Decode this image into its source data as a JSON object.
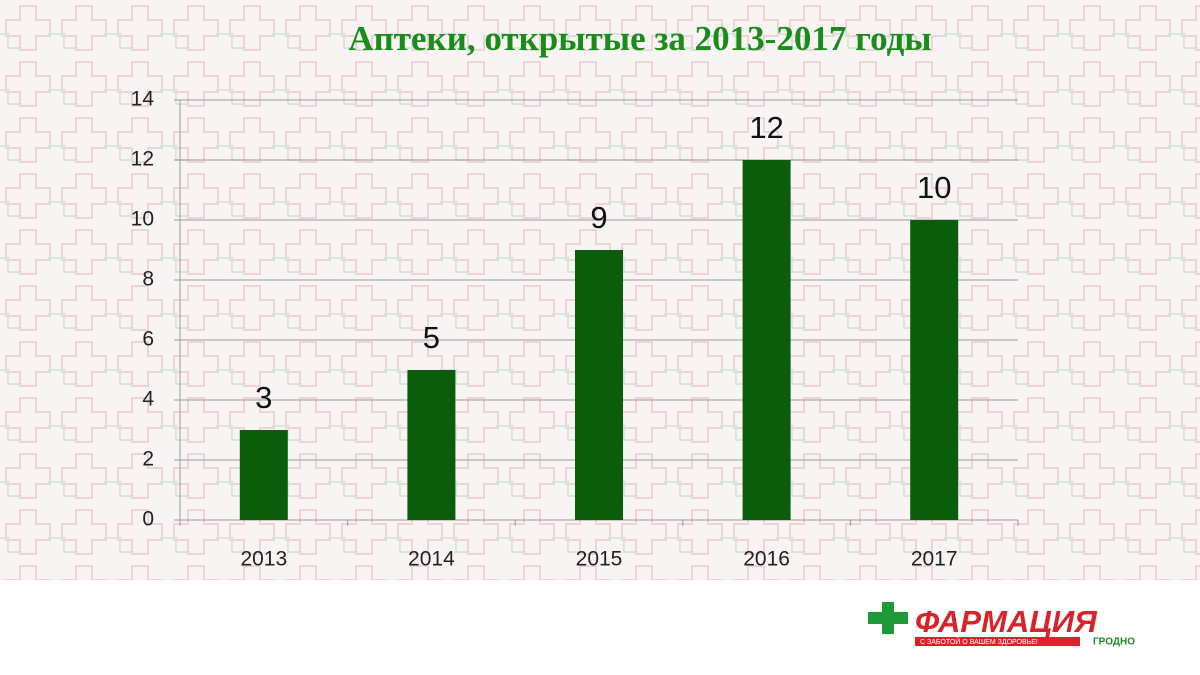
{
  "chart_data": {
    "type": "bar",
    "title": "Аптеки, открытые за 2013-2017 годы",
    "categories": [
      "2013",
      "2014",
      "2015",
      "2016",
      "2017"
    ],
    "values": [
      3,
      5,
      9,
      12,
      10
    ],
    "color": "#0b5d0b",
    "ylim": [
      0,
      14
    ],
    "yticks": [
      0,
      2,
      4,
      6,
      8,
      10,
      12,
      14
    ],
    "grid": true,
    "data_labels": true
  },
  "logo": {
    "name": "ФАРМАЦИЯ",
    "slogan": "С ЗАБОТОЙ О ВАШЕМ ЗДОРОВЬЕ!",
    "city": "ГРОДНО"
  }
}
